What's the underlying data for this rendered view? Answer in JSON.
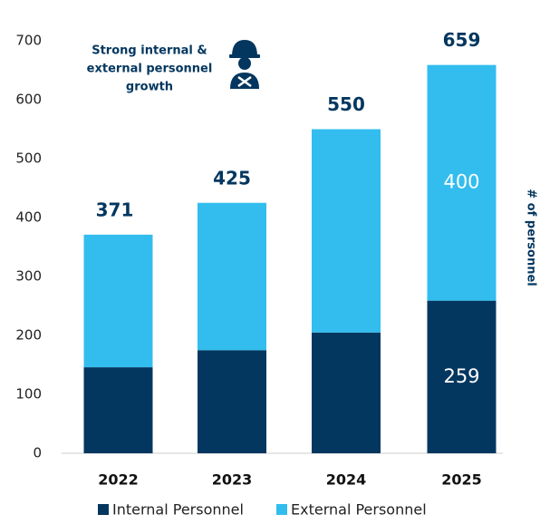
{
  "chart_data": {
    "type": "stacked_bar",
    "annotation": [
      "Strong internal &",
      "external personnel",
      "growth"
    ],
    "y_axis_label": "# of personnel",
    "categories": [
      "2022",
      "2023",
      "2024",
      "2025"
    ],
    "series": [
      {
        "name": "Internal Personnel",
        "color": "#04375f",
        "values": [
          146,
          175,
          205,
          259
        ]
      },
      {
        "name": "External Personnel",
        "color": "#33bdef",
        "values": [
          225,
          250,
          345,
          400
        ]
      }
    ],
    "totals": [
      371,
      425,
      550,
      659
    ],
    "ylim": [
      0,
      700
    ],
    "yticks": [
      0,
      100,
      200,
      300,
      400,
      500,
      600,
      700
    ],
    "grid": false,
    "legend": "bottom"
  }
}
